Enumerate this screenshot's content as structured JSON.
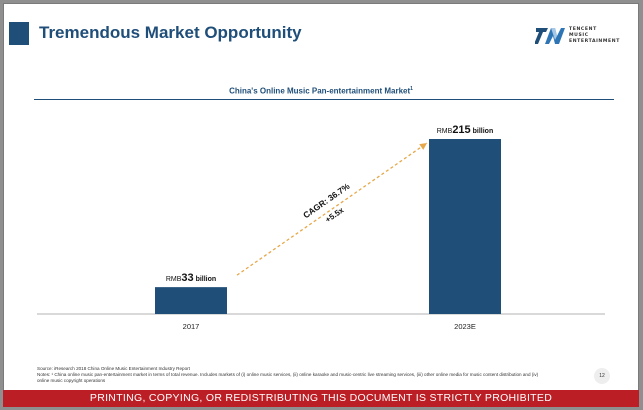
{
  "slide": {
    "title": "Tremendous Market Opportunity",
    "page_number": "12"
  },
  "logo": {
    "line1": "TENCENT",
    "line2": "MUSIC",
    "line3": "ENTERTAINMENT"
  },
  "chart_data": {
    "type": "bar",
    "title": "China's Online Music Pan-entertainment Market",
    "title_footnote": "1",
    "categories": [
      "2017",
      "2023E"
    ],
    "values": [
      33,
      215
    ],
    "unit_prefix": "RMB",
    "unit_suffix": "billion",
    "bar_color": "#1f4e79",
    "annotation": {
      "line1": "CAGR: 36.7%",
      "line2": "+5.5x",
      "arrow_color": "#e6a84a"
    },
    "ylim": [
      0,
      215
    ],
    "grid": false,
    "legend": "none"
  },
  "footnotes": {
    "source": "Source: iResearch 2018 China Online Music Entertainment Industry Report",
    "notes": "Notes: ¹ China online music pan-entertainment market in terms of total revenue. Includes markets of (i) online music services, (ii) online karaoke and music-centric live streaming services, (iii) other online media for music content distribution and (iv)",
    "notes_cont": "online music copyright operations"
  },
  "banner": {
    "text": "PRINTING, COPYING, OR REDISTRIBUTING THIS DOCUMENT IS STRICTLY PROHIBITED",
    "color": "#bb1f25"
  }
}
